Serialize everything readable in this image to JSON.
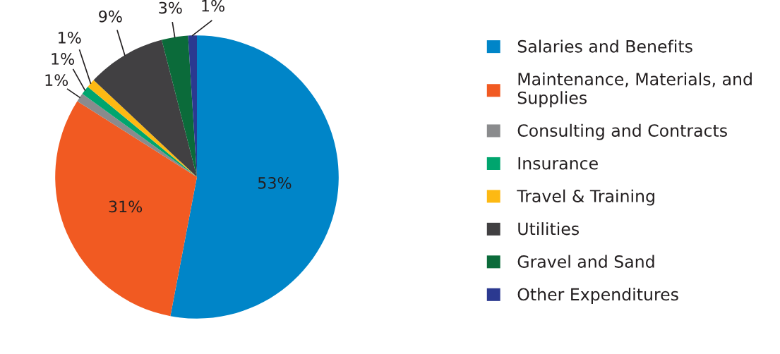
{
  "chart_data": {
    "type": "pie",
    "categories": [
      "Salaries and Benefits",
      "Maintenance, Materials, and Supplies",
      "Consulting and Contracts",
      "Insurance",
      "Travel & Training",
      "Utilities",
      "Gravel and Sand",
      "Other Expenditures"
    ],
    "values": [
      53,
      31,
      1,
      1,
      1,
      9,
      3,
      1
    ],
    "colors": [
      "#0085c8",
      "#f15a22",
      "#8a8b8d",
      "#00a56e",
      "#fdb913",
      "#414042",
      "#0b6b3a",
      "#2b3990"
    ],
    "value_labels": [
      "53%",
      "31%",
      "1%",
      "1%",
      "1%",
      "9%",
      "3%",
      "1%"
    ],
    "legend": "right"
  }
}
